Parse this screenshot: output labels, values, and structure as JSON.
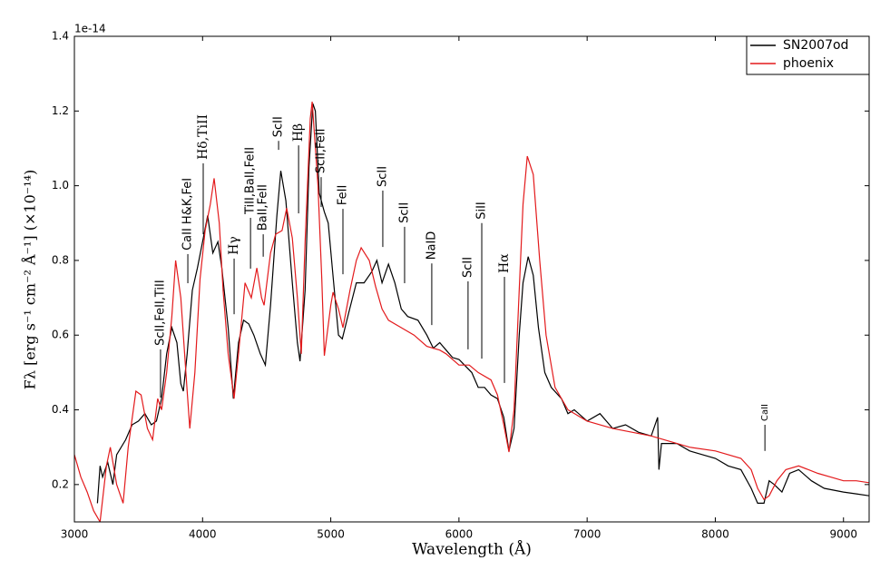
{
  "chart_data": {
    "type": "line",
    "x_label": "Wavelength (Å)",
    "y_label": "Fλ [erg s⁻¹ cm⁻² Å⁻¹] (×10⁻¹⁴)",
    "y_offset": "1e-14",
    "xlim": [
      3000,
      9200
    ],
    "ylim": [
      0.1,
      1.4
    ],
    "xticks": [
      3000,
      4000,
      5000,
      6000,
      7000,
      8000,
      9000
    ],
    "yticks": [
      0.2,
      0.4,
      0.6,
      0.8,
      {
        "value": 1,
        "label": "1.0"
      },
      1.2,
      1.4
    ],
    "legend": "upper right",
    "series": [
      {
        "name": "SN2007od",
        "color": "#000000",
        "x": [
          3180,
          3200,
          3220,
          3260,
          3300,
          3330,
          3400,
          3450,
          3500,
          3550,
          3600,
          3640,
          3680,
          3720,
          3760,
          3800,
          3830,
          3850,
          3880,
          3920,
          3960,
          4000,
          4040,
          4080,
          4120,
          4150,
          4200,
          4240,
          4280,
          4320,
          4360,
          4400,
          4450,
          4490,
          4530,
          4580,
          4610,
          4650,
          4700,
          4740,
          4760,
          4800,
          4830,
          4860,
          4880,
          4910,
          4950,
          4980,
          5020,
          5060,
          5090,
          5140,
          5200,
          5260,
          5320,
          5360,
          5400,
          5450,
          5500,
          5550,
          5600,
          5680,
          5750,
          5800,
          5850,
          5900,
          5950,
          6000,
          6100,
          6150,
          6200,
          6250,
          6300,
          6350,
          6390,
          6430,
          6470,
          6500,
          6540,
          6580,
          6620,
          6670,
          6720,
          6800,
          6850,
          6900,
          7000,
          7100,
          7200,
          7300,
          7400,
          7500,
          7550,
          7560,
          7580,
          7700,
          7800,
          7900,
          8000,
          8100,
          8200,
          8280,
          8330,
          8380,
          8420,
          8460,
          8520,
          8580,
          8650,
          8750,
          8850,
          9000,
          9100,
          9200
        ],
        "values": [
          0.15,
          0.25,
          0.22,
          0.26,
          0.2,
          0.28,
          0.32,
          0.36,
          0.37,
          0.39,
          0.36,
          0.37,
          0.43,
          0.55,
          0.62,
          0.58,
          0.47,
          0.45,
          0.55,
          0.72,
          0.78,
          0.85,
          0.92,
          0.82,
          0.85,
          0.78,
          0.62,
          0.43,
          0.58,
          0.64,
          0.63,
          0.6,
          0.55,
          0.52,
          0.68,
          0.92,
          1.04,
          0.96,
          0.74,
          0.58,
          0.53,
          0.72,
          1.05,
          1.22,
          1.2,
          0.98,
          0.93,
          0.9,
          0.75,
          0.6,
          0.59,
          0.66,
          0.74,
          0.74,
          0.77,
          0.8,
          0.74,
          0.79,
          0.74,
          0.67,
          0.65,
          0.64,
          0.6,
          0.565,
          0.58,
          0.56,
          0.54,
          0.535,
          0.5,
          0.46,
          0.46,
          0.44,
          0.43,
          0.38,
          0.29,
          0.35,
          0.6,
          0.74,
          0.81,
          0.76,
          0.62,
          0.5,
          0.46,
          0.43,
          0.39,
          0.4,
          0.37,
          0.39,
          0.35,
          0.36,
          0.34,
          0.33,
          0.38,
          0.24,
          0.31,
          0.31,
          0.29,
          0.28,
          0.27,
          0.25,
          0.24,
          0.19,
          0.15,
          0.15,
          0.21,
          0.2,
          0.18,
          0.23,
          0.24,
          0.21,
          0.19,
          0.18,
          0.175,
          0.17
        ]
      },
      {
        "name": "phoenix",
        "color": "#e31a1c",
        "x": [
          3000,
          3050,
          3100,
          3150,
          3200,
          3250,
          3280,
          3330,
          3380,
          3420,
          3480,
          3520,
          3570,
          3610,
          3650,
          3680,
          3720,
          3760,
          3790,
          3830,
          3880,
          3900,
          3940,
          3980,
          4020,
          4060,
          4090,
          4130,
          4160,
          4200,
          4246,
          4280,
          4331,
          4380,
          4423,
          4460,
          4480,
          4530,
          4570,
          4620,
          4656,
          4700,
          4740,
          4770,
          4800,
          4840,
          4855,
          4900,
          4930,
          4950,
          5000,
          5018,
          5060,
          5095,
          5150,
          5200,
          5237,
          5300,
          5350,
          5400,
          5450,
          5550,
          5650,
          5750,
          5850,
          5900,
          6000,
          6080,
          6150,
          6250,
          6300,
          6350,
          6390,
          6430,
          6470,
          6500,
          6533,
          6580,
          6630,
          6680,
          6750,
          6850,
          7000,
          7200,
          7500,
          7800,
          8000,
          8200,
          8280,
          8330,
          8380,
          8420,
          8480,
          8550,
          8650,
          8800,
          8900,
          9000,
          9100,
          9200
        ],
        "values": [
          0.28,
          0.22,
          0.18,
          0.13,
          0.1,
          0.25,
          0.3,
          0.2,
          0.15,
          0.3,
          0.45,
          0.44,
          0.35,
          0.32,
          0.43,
          0.4,
          0.5,
          0.65,
          0.8,
          0.7,
          0.45,
          0.35,
          0.5,
          0.75,
          0.88,
          0.95,
          1.02,
          0.9,
          0.72,
          0.55,
          0.43,
          0.55,
          0.74,
          0.7,
          0.78,
          0.7,
          0.68,
          0.82,
          0.87,
          0.88,
          0.94,
          0.86,
          0.7,
          0.55,
          0.85,
          1.18,
          1.225,
          1.0,
          0.75,
          0.545,
          0.68,
          0.715,
          0.67,
          0.62,
          0.72,
          0.8,
          0.834,
          0.8,
          0.73,
          0.67,
          0.64,
          0.62,
          0.6,
          0.57,
          0.56,
          0.55,
          0.52,
          0.52,
          0.5,
          0.48,
          0.44,
          0.36,
          0.287,
          0.4,
          0.72,
          0.95,
          1.079,
          1.03,
          0.8,
          0.6,
          0.46,
          0.4,
          0.37,
          0.35,
          0.33,
          0.3,
          0.29,
          0.27,
          0.24,
          0.19,
          0.16,
          0.17,
          0.21,
          0.24,
          0.25,
          0.23,
          0.22,
          0.21,
          0.21,
          0.205
        ]
      }
    ],
    "annotations": [
      {
        "text": "ScII,FeII,TiII",
        "xy": [
          3672,
          0.433
        ],
        "xytext": [
          3672,
          0.562
        ]
      },
      {
        "text": "CaII H&K,FeI",
        "xy": [
          3885,
          0.739
        ],
        "xytext": [
          3885,
          0.817
        ]
      },
      {
        "text": "Hδ,TiII",
        "xy": [
          4005,
          0.87
        ],
        "xytext": [
          4005,
          1.06
        ]
      },
      {
        "text": "Hγ",
        "xy": [
          4246,
          0.656
        ],
        "xytext": [
          4246,
          0.805
        ]
      },
      {
        "text": "TiII,BaII,FeII",
        "xy": [
          4374,
          0.778
        ],
        "xytext": [
          4374,
          0.914
        ]
      },
      {
        "text": "BaII,FeII",
        "xy": [
          4473,
          0.81
        ],
        "xytext": [
          4473,
          0.87
        ]
      },
      {
        "text": "ScII",
        "xy": [
          4593,
          1.096
        ],
        "xytext": [
          4593,
          1.12
        ]
      },
      {
        "text": "Hβ",
        "xy": [
          4749,
          0.926
        ],
        "xytext": [
          4749,
          1.108
        ]
      },
      {
        "text": "ScII,FeII",
        "xy": [
          4925,
          0.943
        ],
        "xytext": [
          4925,
          1.023
        ]
      },
      {
        "text": "FeII",
        "xy": [
          5095,
          0.763
        ],
        "xytext": [
          5095,
          0.938
        ]
      },
      {
        "text": "ScII",
        "xy": [
          5406,
          0.836
        ],
        "xytext": [
          5406,
          0.987
        ]
      },
      {
        "text": "ScII",
        "xy": [
          5576,
          0.739
        ],
        "xytext": [
          5576,
          0.89
        ]
      },
      {
        "text": "NaID",
        "xy": [
          5788,
          0.627
        ],
        "xytext": [
          5788,
          0.792
        ]
      },
      {
        "text": "ScII",
        "xy": [
          6071,
          0.562
        ],
        "xytext": [
          6071,
          0.744
        ]
      },
      {
        "text": "SiII",
        "xy": [
          6178,
          0.537
        ],
        "xytext": [
          6178,
          0.9
        ]
      },
      {
        "text": "Hα",
        "xy": [
          6355,
          0.472
        ],
        "xytext": [
          6355,
          0.756
        ]
      },
      {
        "text": "CaII",
        "xy": [
          8387,
          0.29
        ],
        "xytext": [
          8387,
          0.36
        ]
      }
    ]
  }
}
